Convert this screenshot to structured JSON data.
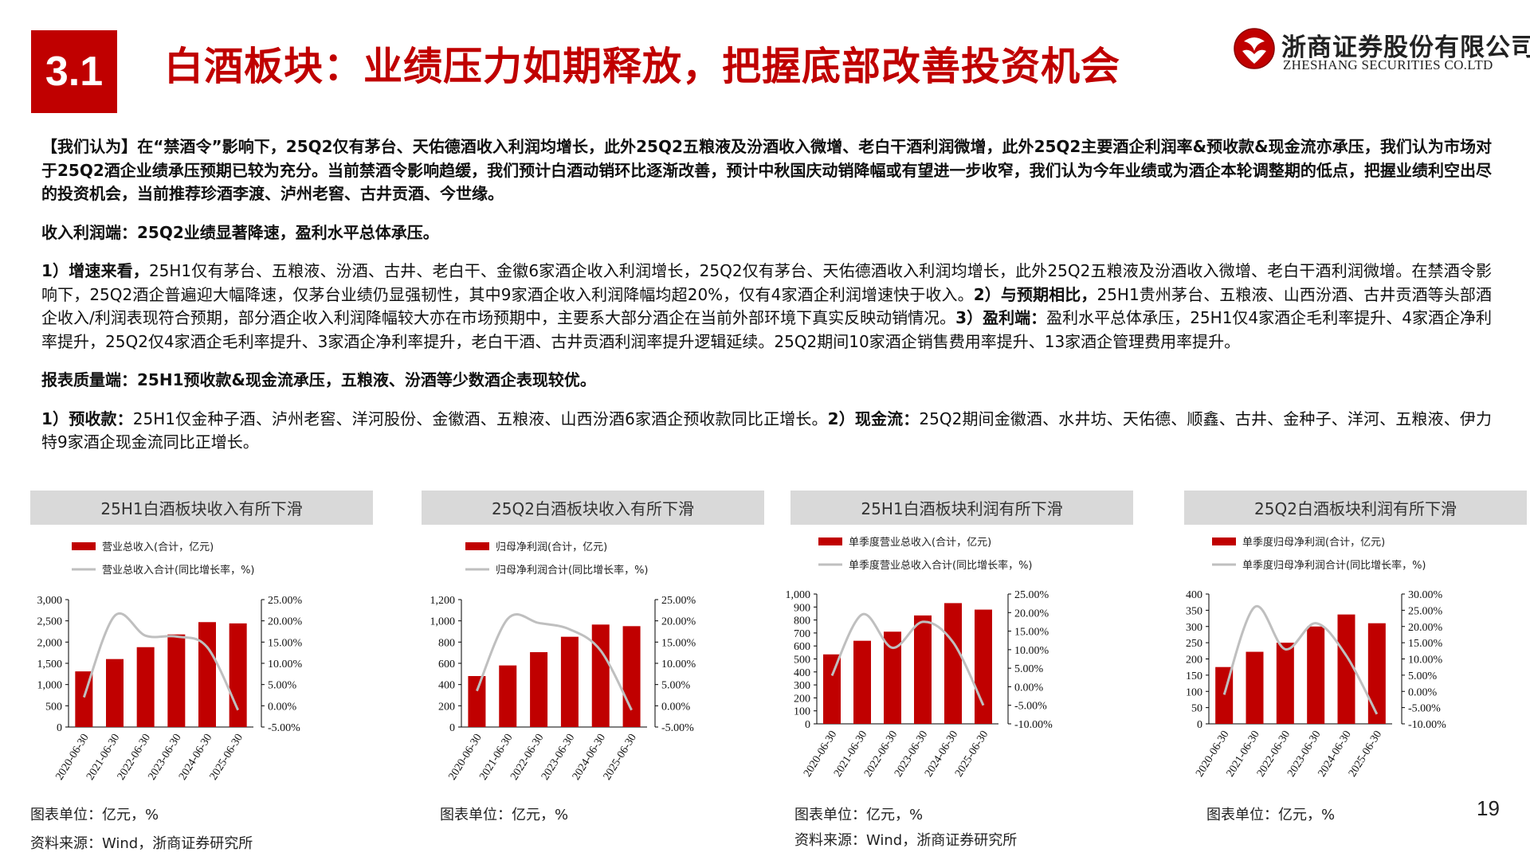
{
  "header": {
    "section_number": "3.1",
    "title": "白酒板块：业绩压力如期释放，把握底部改善投资机会",
    "logo_cn": "浙商证券股份有限公司",
    "logo_en": "ZHESHANG SECURITIES CO.LTD",
    "brand_color": "#c00000"
  },
  "body": {
    "p1_lead": "【我们认为】",
    "p1_a": "在“禁酒令”影响下，25Q2仅有茅台、天佑德酒收入利润均增长，此外25Q2五粮液及汾酒收入微增、老白干酒利润微增，此外25Q2主要酒企利润率&预收款&现金流亦承压，",
    "p1_b": "我们认为市场对于25Q2酒企业绩承压预期已较为充分。",
    "p1_c": "当前禁酒令影响趋缓，我们预计白酒动销环比逐渐改善，预计中秋国庆动销降幅或有望进一步收窄，我们认为今年业绩或为酒企本轮调整期的低点，把握业绩利空出尽的投资机会，当前推荐珍酒李渡、泸州老窖、古井贡酒、今世缘。",
    "h1": "收入利润端：25Q2业绩显著降速，盈利水平总体承压。",
    "p2_s1_lead": "1）增速来看，",
    "p2_s1": "25H1仅有茅台、五粮液、汾酒、古井、老白干、金徽6家酒企收入利润增长，25Q2仅有茅台、天佑德酒收入利润均增长，此外25Q2五粮液及汾酒收入微增、老白干酒利润微增。在禁酒令影响下，25Q2酒企普遍迎大幅降速，仅茅台业绩仍显强韧性，其中9家酒企收入利润降幅均超20%，仅有4家酒企利润增速快于收入。",
    "p2_s2_lead": "2）与预期相比，",
    "p2_s2": "25H1贵州茅台、五粮液、山西汾酒、古井贡酒等头部酒企收入/利润表现符合预期，部分酒企收入利润降幅较大亦在市场预期中，主要系大部分酒企在当前外部环境下真实反映动销情况。",
    "p2_s3_lead": "3）盈利端：",
    "p2_s3": "盈利水平总体承压，25H1仅4家酒企毛利率提升、4家酒企净利率提升，25Q2仅4家酒企毛利率提升、3家酒企净利率提升，老白干酒、古井贡酒利润率提升逻辑延续。25Q2期间10家酒企销售费用率提升、13家酒企管理费用率提升。",
    "h2": "报表质量端：25H1预收款&现金流承压，五粮液、汾酒等少数酒企表现较优。",
    "p3_s1_lead": "1）预收款：",
    "p3_s1": "25H1仅金种子酒、泸州老窖、洋河股份、金徽酒、五粮液、山西汾酒6家酒企预收款同比正增长。",
    "p3_s2_lead": "2）现金流：",
    "p3_s2": "25Q2期间金徽酒、水井坊、天佑德、顺鑫、古井、金种子、洋河、五粮液、伊力特9家酒企现金流同比正增长。"
  },
  "chart_data": [
    {
      "type": "bar",
      "title": "25H1白酒板块收入有所下滑",
      "categories": [
        "2020-06-30",
        "2021-06-30",
        "2022-06-30",
        "2023-06-30",
        "2024-06-30",
        "2025-06-30"
      ],
      "series": [
        {
          "name": "营业总收入(合计，亿元)",
          "type": "bar",
          "axis": "left",
          "values": [
            1310,
            1600,
            1880,
            2180,
            2470,
            2440
          ],
          "color": "#c00000"
        },
        {
          "name": "营业总收入合计(同比增长率，%)",
          "type": "line",
          "axis": "right",
          "values": [
            2.0,
            21.2,
            16.5,
            16.3,
            13.8,
            -1.0
          ],
          "color": "#bfbfbf"
        }
      ],
      "y_left": {
        "min": 0,
        "max": 3000,
        "ticks": [
          "0",
          "500",
          "1,000",
          "1,500",
          "2,000",
          "2,500",
          "3,000"
        ]
      },
      "y_right": {
        "min": -5,
        "max": 25,
        "ticks": [
          "-5.00%",
          "0.00%",
          "5.00%",
          "10.00%",
          "15.00%",
          "20.00%",
          "25.00%"
        ]
      },
      "unit_note": "图表单位：亿元，%",
      "source": "资料来源：Wind，浙商证券研究所"
    },
    {
      "type": "bar",
      "title": "25Q2白酒板块收入有所下滑",
      "categories": [
        "2020-06-30",
        "2021-06-30",
        "2022-06-30",
        "2023-06-30",
        "2024-06-30",
        "2025-06-30"
      ],
      "series": [
        {
          "name": "归母净利润(合计，亿元)",
          "type": "bar",
          "axis": "left",
          "values": [
            480,
            580,
            705,
            850,
            965,
            950
          ],
          "color": "#c00000"
        },
        {
          "name": "归母净利润合计(同比增长率，%)",
          "type": "line",
          "axis": "right",
          "values": [
            3.5,
            20.5,
            19.5,
            18.0,
            13.0,
            -1.0
          ],
          "color": "#bfbfbf"
        }
      ],
      "y_left": {
        "min": 0,
        "max": 1200,
        "ticks": [
          "0",
          "200",
          "400",
          "600",
          "800",
          "1,000",
          "1,200"
        ]
      },
      "y_right": {
        "min": -5,
        "max": 25,
        "ticks": [
          "-5.00%",
          "0.00%",
          "5.00%",
          "10.00%",
          "15.00%",
          "20.00%",
          "25.00%"
        ]
      },
      "unit_note": "图表单位：亿元，%"
    },
    {
      "type": "bar",
      "title": "25H1白酒板块利润有所下滑",
      "categories": [
        "2020-06-30",
        "2021-06-30",
        "2022-06-30",
        "2023-06-30",
        "2024-06-30",
        "2025-06-30"
      ],
      "series": [
        {
          "name": "单季度营业总收入(合计，亿元)",
          "type": "bar",
          "axis": "left",
          "values": [
            535,
            640,
            710,
            835,
            930,
            880
          ],
          "color": "#c00000"
        },
        {
          "name": "单季度营业总收入合计(同比增长率，%)",
          "type": "line",
          "axis": "right",
          "values": [
            3.0,
            19.5,
            10.5,
            17.5,
            12.0,
            -5.0
          ],
          "color": "#bfbfbf"
        }
      ],
      "y_left": {
        "min": 0,
        "max": 1000,
        "ticks": [
          "0",
          "100",
          "200",
          "300",
          "400",
          "500",
          "600",
          "700",
          "800",
          "900",
          "1,000"
        ]
      },
      "y_right": {
        "min": -10,
        "max": 25,
        "ticks": [
          "-10.00%",
          "-5.00%",
          "0.00%",
          "5.00%",
          "10.00%",
          "15.00%",
          "20.00%",
          "25.00%"
        ]
      },
      "unit_note": "图表单位：亿元，%",
      "source": "资料来源：Wind，浙商证券研究所"
    },
    {
      "type": "bar",
      "title": "25Q2白酒板块利润有所下滑",
      "categories": [
        "2020-06-30",
        "2021-06-30",
        "2022-06-30",
        "2023-06-30",
        "2024-06-30",
        "2025-06-30"
      ],
      "series": [
        {
          "name": "单季度归母净利润(合计，亿元)",
          "type": "bar",
          "axis": "left",
          "values": [
            175,
            222,
            250,
            300,
            337,
            310
          ],
          "color": "#c00000"
        },
        {
          "name": "单季度归母净利润合计(同比增长率，%)",
          "type": "line",
          "axis": "right",
          "values": [
            -1.0,
            26.0,
            13.0,
            21.0,
            11.0,
            -7.0
          ],
          "color": "#bfbfbf"
        }
      ],
      "y_left": {
        "min": 0,
        "max": 400,
        "ticks": [
          "0",
          "50",
          "100",
          "150",
          "200",
          "250",
          "300",
          "350",
          "400"
        ]
      },
      "y_right": {
        "min": -10,
        "max": 30,
        "ticks": [
          "-10.00%",
          "-5.00%",
          "0.00%",
          "5.00%",
          "10.00%",
          "15.00%",
          "20.00%",
          "25.00%",
          "30.00%"
        ]
      },
      "unit_note": "图表单位：亿元，%"
    }
  ],
  "page_number": "19"
}
